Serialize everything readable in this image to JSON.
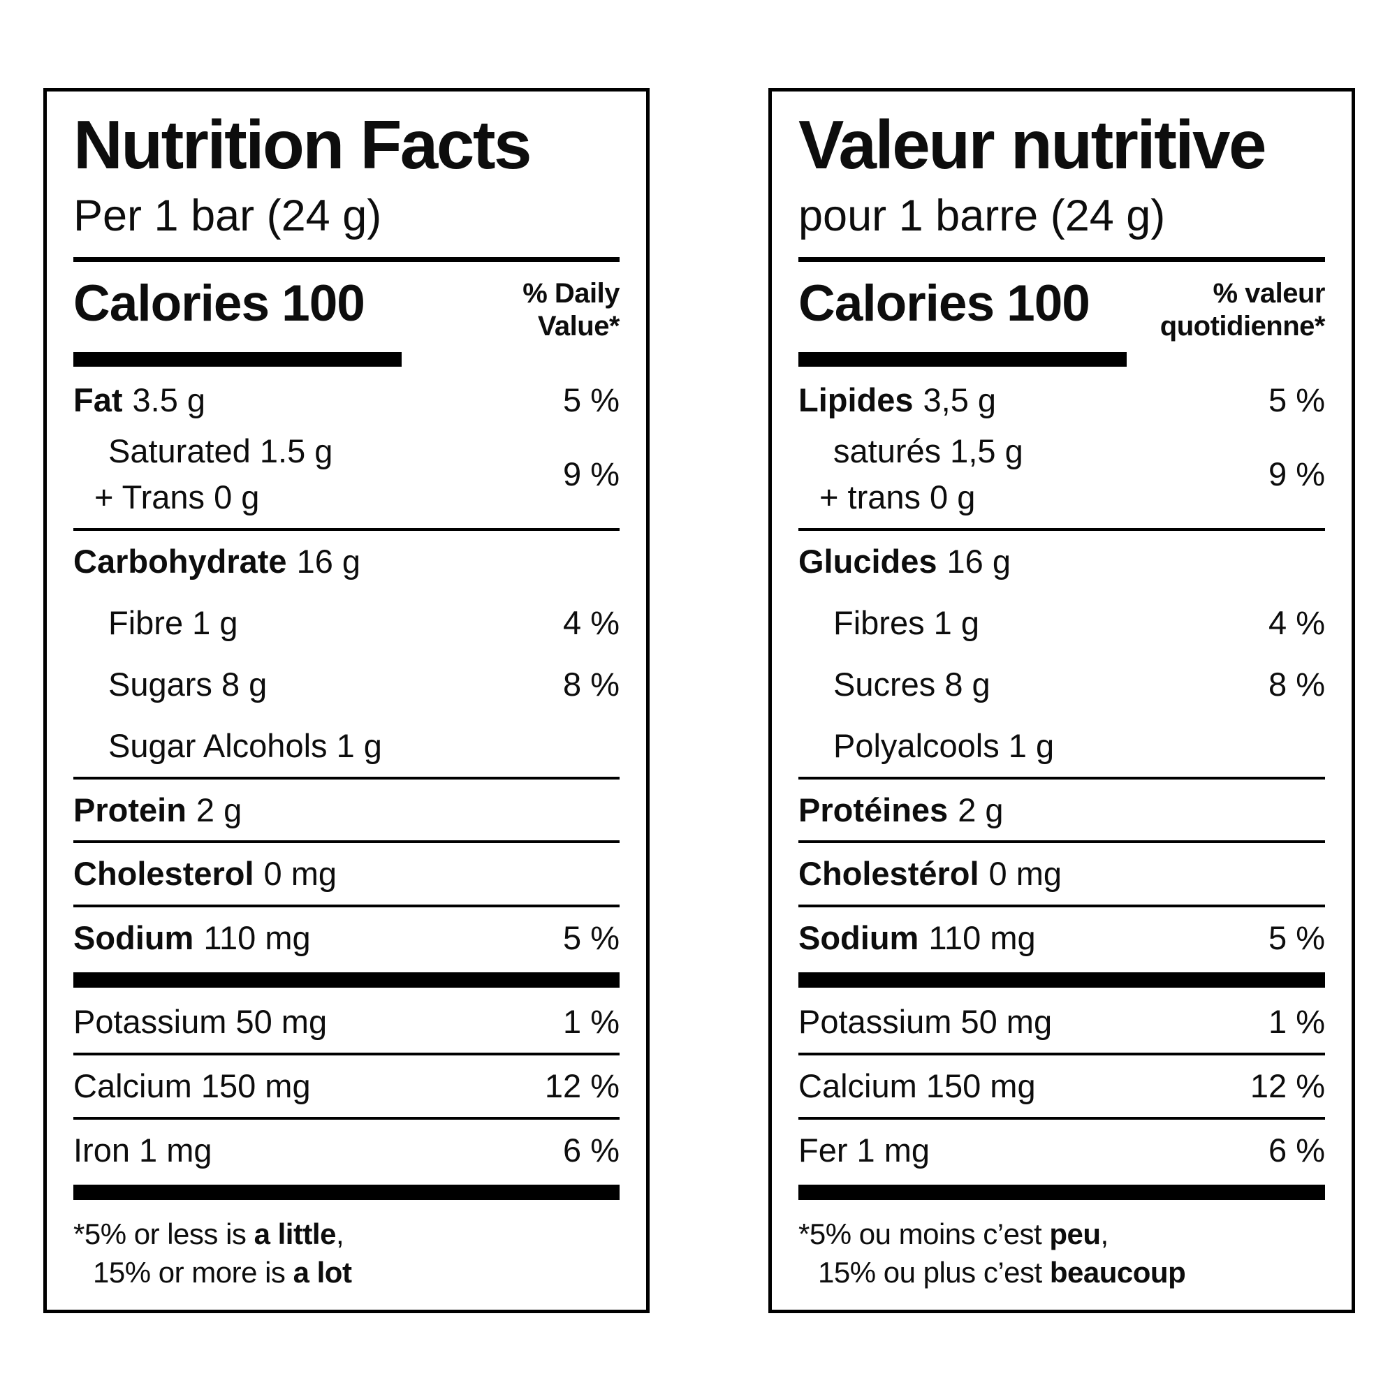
{
  "colors": {
    "text": "#0d0d0d",
    "background": "#ffffff",
    "rules": "#000000"
  },
  "en": {
    "title": "Nutrition Facts",
    "serving": "Per 1 bar (24 g)",
    "calories": {
      "label": "Calories",
      "value": "100"
    },
    "dv_header": {
      "line1": "% Daily",
      "line2": "Value*"
    },
    "fat": {
      "name": "Fat",
      "amount": "3.5 g",
      "dv": "5 %"
    },
    "saturated": {
      "line1": "Saturated 1.5 g",
      "line2": "+ Trans 0 g",
      "dv": "9 %"
    },
    "carbohydrate": {
      "name": "Carbohydrate",
      "amount": "16 g"
    },
    "fibre": {
      "label": "Fibre 1 g",
      "dv": "4 %"
    },
    "sugars": {
      "label": "Sugars 8 g",
      "dv": "8 %"
    },
    "sugar_alcohols": {
      "label": "Sugar Alcohols 1 g"
    },
    "protein": {
      "name": "Protein",
      "amount": "2 g"
    },
    "cholesterol": {
      "name": "Cholesterol",
      "amount": "0 mg"
    },
    "sodium": {
      "name": "Sodium",
      "amount": "110 mg",
      "dv": "5 %"
    },
    "potassium": {
      "label": "Potassium 50 mg",
      "dv": "1 %"
    },
    "calcium": {
      "label": "Calcium 150 mg",
      "dv": "12 %"
    },
    "iron": {
      "label": "Iron 1 mg",
      "dv": "6 %"
    },
    "footnote": {
      "pre1": "*5% or less is ",
      "bold1": "a little",
      "post1": ",",
      "pre2": "15% or more is ",
      "bold2": "a lot"
    }
  },
  "fr": {
    "title": "Valeur nutritive",
    "serving": "pour 1 barre (24 g)",
    "calories": {
      "label": "Calories",
      "value": "100"
    },
    "dv_header": {
      "line1": "% valeur",
      "line2": "quotidienne*"
    },
    "fat": {
      "name": "Lipides",
      "amount": "3,5 g",
      "dv": "5 %"
    },
    "saturated": {
      "line1": "saturés 1,5 g",
      "line2": "+ trans 0 g",
      "dv": "9 %"
    },
    "carbohydrate": {
      "name": "Glucides",
      "amount": "16 g"
    },
    "fibre": {
      "label": "Fibres 1 g",
      "dv": "4 %"
    },
    "sugars": {
      "label": "Sucres 8 g",
      "dv": "8 %"
    },
    "sugar_alcohols": {
      "label": "Polyalcools 1 g"
    },
    "protein": {
      "name": "Protéines",
      "amount": "2 g"
    },
    "cholesterol": {
      "name": "Cholestérol",
      "amount": "0 mg"
    },
    "sodium": {
      "name": "Sodium",
      "amount": "110 mg",
      "dv": "5 %"
    },
    "potassium": {
      "label": "Potassium 50 mg",
      "dv": "1 %"
    },
    "calcium": {
      "label": "Calcium 150 mg",
      "dv": "12 %"
    },
    "iron": {
      "label": "Fer 1 mg",
      "dv": "6 %"
    },
    "footnote": {
      "pre1": "*5% ou moins c’est ",
      "bold1": "peu",
      "post1": ",",
      "pre2": "15% ou plus c’est ",
      "bold2": "beaucoup"
    }
  }
}
